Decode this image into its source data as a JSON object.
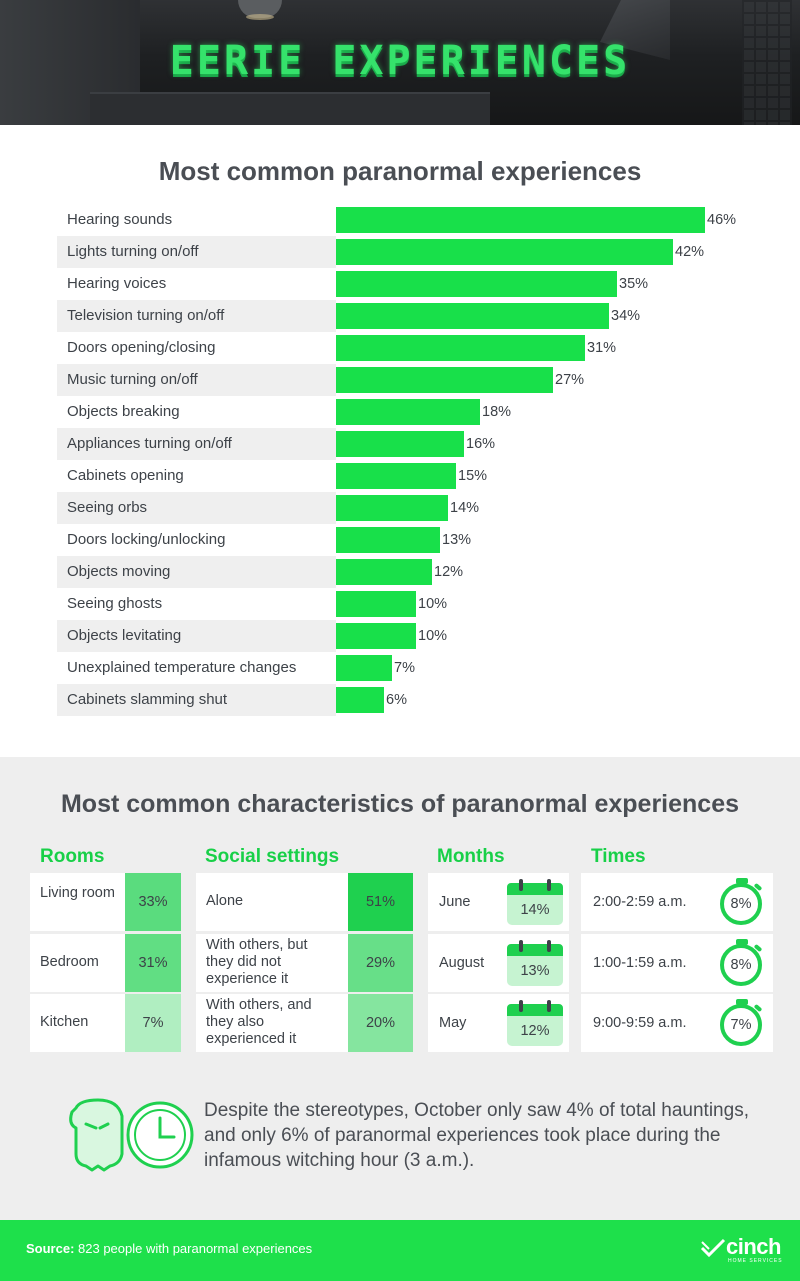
{
  "header": {
    "title": "EERIE EXPERIENCES"
  },
  "chart_data": {
    "type": "bar",
    "orientation": "horizontal",
    "title": "Most common paranormal experiences",
    "unit": "%",
    "categories": [
      "Hearing sounds",
      "Lights turning on/off",
      "Hearing voices",
      "Television turning on/off",
      "Doors opening/closing",
      "Music turning on/off",
      "Objects breaking",
      "Appliances turning on/off",
      "Cabinets opening",
      "Seeing orbs",
      "Doors locking/unlocking",
      "Objects moving",
      "Seeing ghosts",
      "Objects levitating",
      "Unexplained temperature changes",
      "Cabinets slamming shut"
    ],
    "values": [
      46,
      42,
      35,
      34,
      31,
      27,
      18,
      16,
      15,
      14,
      13,
      12,
      10,
      10,
      7,
      6
    ],
    "value_labels": [
      "46%",
      "42%",
      "35%",
      "34%",
      "31%",
      "27%",
      "18%",
      "16%",
      "15%",
      "14%",
      "13%",
      "12%",
      "10%",
      "10%",
      "7%",
      "6%"
    ],
    "bar_color": "#18e04a"
  },
  "characteristics": {
    "title": "Most common characteristics of paranormal experiences",
    "rooms": {
      "heading": "Rooms",
      "items": [
        {
          "label": "Living room",
          "value": 33,
          "display": "33%"
        },
        {
          "label": "Bedroom",
          "value": 31,
          "display": "31%"
        },
        {
          "label": "Kitchen",
          "value": 7,
          "display": "7%"
        }
      ]
    },
    "social": {
      "heading": "Social settings",
      "items": [
        {
          "label": "Alone",
          "value": 51,
          "display": "51%"
        },
        {
          "label": "With others, but they did not experience it",
          "value": 29,
          "display": "29%"
        },
        {
          "label": "With others, and they also experienced it",
          "value": 20,
          "display": "20%"
        }
      ]
    },
    "months": {
      "heading": "Months",
      "items": [
        {
          "label": "June",
          "value": 14,
          "display": "14%"
        },
        {
          "label": "August",
          "value": 13,
          "display": "13%"
        },
        {
          "label": "May",
          "value": 12,
          "display": "12%"
        }
      ]
    },
    "times": {
      "heading": "Times",
      "items": [
        {
          "label": "2:00-2:59 a.m.",
          "value": 8,
          "display": "8%"
        },
        {
          "label": "1:00-1:59 a.m.",
          "value": 8,
          "display": "8%"
        },
        {
          "label": "9:00-9:59 a.m.",
          "value": 7,
          "display": "7%"
        }
      ]
    },
    "note": "Despite the stereotypes, October only saw 4% of total hauntings, and only 6% of paranormal experiences took place during the infamous witching hour (3 a.m.)."
  },
  "footer": {
    "source_label": "Source:",
    "source_text": " 823 people with paranormal experiences",
    "brand": "cinch",
    "brand_sub": "HOME SERVICES"
  },
  "colors": {
    "accent": "#1ee04b",
    "heading_green": "#18d048",
    "text": "#3d4248"
  }
}
